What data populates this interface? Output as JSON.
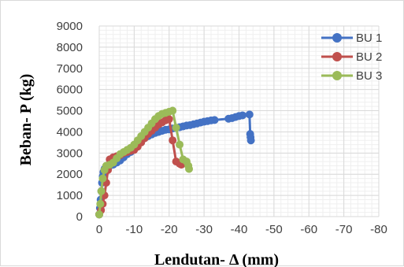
{
  "chart_data": {
    "type": "scatter",
    "title": "",
    "xlabel": "Lendutan- Δ (mm)",
    "ylabel": "Beban- P (kg)",
    "xlim": [
      0,
      -80
    ],
    "ylim": [
      0,
      9000
    ],
    "x_ticks": [
      "0",
      "-10",
      "-20",
      "-30",
      "-40",
      "-50",
      "-60",
      "-70",
      "-80"
    ],
    "y_ticks": [
      "0",
      "1000",
      "2000",
      "3000",
      "4000",
      "5000",
      "6000",
      "7000",
      "8000",
      "9000"
    ],
    "x_tick_values": [
      0,
      -10,
      -20,
      -30,
      -40,
      -50,
      -60,
      -70,
      -80
    ],
    "y_tick_values": [
      0,
      1000,
      2000,
      3000,
      4000,
      5000,
      6000,
      7000,
      8000,
      9000
    ],
    "grid": true,
    "legend_position": "top-right",
    "series": [
      {
        "name": "BU 1",
        "color": "#4472c4",
        "x": [
          0,
          -0.2,
          -0.4,
          -0.6,
          -0.8,
          -1,
          -1.2,
          -1.5,
          -2,
          -3,
          -4,
          -5,
          -6,
          -7,
          -8,
          -9,
          -10,
          -11,
          -12,
          -13,
          -14,
          -15,
          -16,
          -17,
          -18,
          -19,
          -20,
          -21,
          -22,
          -23,
          -24,
          -25,
          -26,
          -27,
          -28,
          -29,
          -30,
          -31,
          -32,
          -33,
          -37,
          -38,
          -39,
          -40,
          -41,
          -43,
          -43.2,
          -43.3,
          -43.4
        ],
        "y": [
          100,
          400,
          800,
          1200,
          1600,
          1900,
          2100,
          2250,
          2350,
          2400,
          2450,
          2550,
          2650,
          2800,
          2950,
          3050,
          3200,
          3400,
          3550,
          3700,
          3800,
          3880,
          3950,
          4000,
          4050,
          4100,
          4120,
          4160,
          4190,
          4220,
          4260,
          4300,
          4320,
          4360,
          4400,
          4440,
          4480,
          4510,
          4540,
          4560,
          4620,
          4650,
          4700,
          4750,
          4780,
          4820,
          3900,
          3750,
          3600
        ]
      },
      {
        "name": "BU 2",
        "color": "#c0504d",
        "x": [
          0,
          -0.5,
          -1,
          -1.5,
          -2,
          -2.5,
          -3,
          -4,
          -5,
          -6,
          -7,
          -8,
          -9,
          -10,
          -11,
          -12,
          -13,
          -14,
          -15,
          -16,
          -17,
          -18,
          -19,
          -20,
          -21,
          -22,
          -23,
          -23.5
        ],
        "y": [
          100,
          300,
          600,
          1000,
          1600,
          2200,
          2700,
          2800,
          2850,
          2900,
          3000,
          3050,
          3100,
          3150,
          3300,
          3500,
          3700,
          3900,
          4050,
          4200,
          4350,
          4450,
          4550,
          4600,
          3600,
          2600,
          2500,
          2450
        ]
      },
      {
        "name": "BU 3",
        "color": "#9bbb59",
        "x": [
          0,
          -0.3,
          -0.6,
          -1,
          -1.5,
          -2,
          -3,
          -4,
          -5,
          -6,
          -7,
          -8,
          -9,
          -10,
          -11,
          -12,
          -13,
          -14,
          -15,
          -16,
          -17,
          -18,
          -19,
          -20,
          -21,
          -22,
          -23,
          -24,
          -25,
          -25.5,
          -25.7
        ],
        "y": [
          100,
          600,
          1200,
          1800,
          2200,
          2400,
          2450,
          2550,
          2750,
          2950,
          3050,
          3150,
          3250,
          3400,
          3600,
          3800,
          4000,
          4200,
          4400,
          4600,
          4750,
          4850,
          4900,
          4950,
          5000,
          4200,
          3400,
          2700,
          2600,
          2400,
          2250
        ]
      }
    ]
  }
}
